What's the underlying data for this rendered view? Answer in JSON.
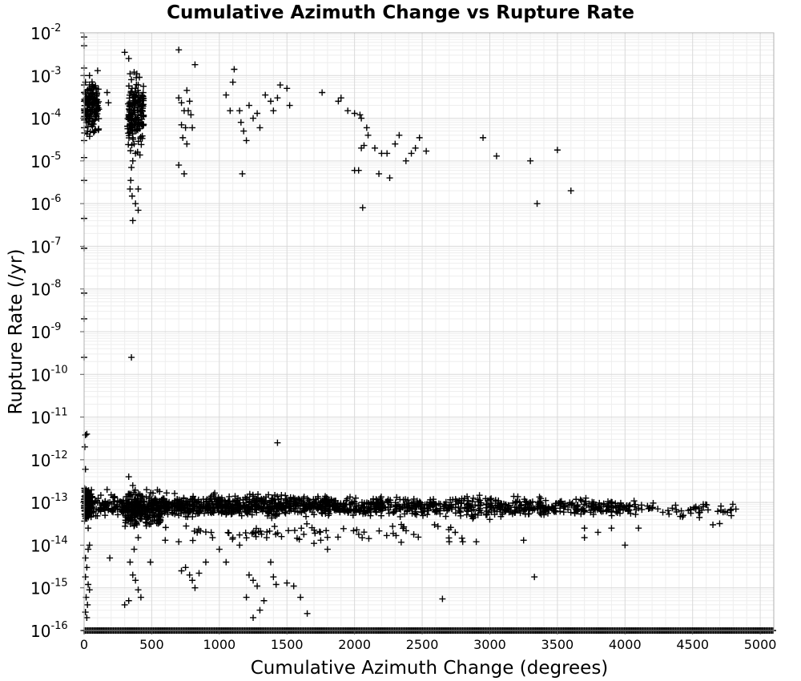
{
  "chart_data": {
    "type": "scatter",
    "title": "Cumulative Azimuth Change vs Rupture Rate",
    "xlabel": "Cumulative Azimuth Change (degrees)",
    "ylabel": "Rupture Rate (/yr)",
    "xlim": [
      0,
      5100
    ],
    "ylim": [
      1e-16,
      0.01
    ],
    "yscale": "log",
    "grid": true,
    "marker": "+",
    "marker_color": "#000000",
    "x_ticks": [
      {
        "value": 0,
        "label": "0"
      },
      {
        "value": 500,
        "label": "500"
      },
      {
        "value": 1000,
        "label": "1000"
      },
      {
        "value": 1500,
        "label": "1500"
      },
      {
        "value": 2000,
        "label": "2000"
      },
      {
        "value": 2500,
        "label": "2500"
      },
      {
        "value": 3000,
        "label": "3000"
      },
      {
        "value": 3500,
        "label": "3500"
      },
      {
        "value": 4000,
        "label": "4000"
      },
      {
        "value": 4500,
        "label": "4500"
      },
      {
        "value": 5000,
        "label": "5000"
      }
    ],
    "y_ticks": [
      {
        "value": 0.01,
        "base": "10",
        "exp": "-2"
      },
      {
        "value": 0.001,
        "base": "10",
        "exp": "-3"
      },
      {
        "value": 0.0001,
        "base": "10",
        "exp": "-4"
      },
      {
        "value": 1e-05,
        "base": "10",
        "exp": "-5"
      },
      {
        "value": 1e-06,
        "base": "10",
        "exp": "-6"
      },
      {
        "value": 1e-07,
        "base": "10",
        "exp": "-7"
      },
      {
        "value": 1e-08,
        "base": "10",
        "exp": "-8"
      },
      {
        "value": 1e-09,
        "base": "10",
        "exp": "-9"
      },
      {
        "value": 1e-10,
        "base": "10",
        "exp": "-10"
      },
      {
        "value": 1e-11,
        "base": "10",
        "exp": "-11"
      },
      {
        "value": 1e-12,
        "base": "10",
        "exp": "-12"
      },
      {
        "value": 1e-13,
        "base": "10",
        "exp": "-13"
      },
      {
        "value": 1e-14,
        "base": "10",
        "exp": "-14"
      },
      {
        "value": 1e-15,
        "base": "10",
        "exp": "-15"
      },
      {
        "value": 1e-16,
        "base": "10",
        "exp": "-16"
      }
    ],
    "points": [
      [
        0,
        0.008
      ],
      [
        0,
        0.005
      ],
      [
        0,
        0.0015
      ],
      [
        0,
        0.001
      ],
      [
        0,
        0.0006
      ],
      [
        0,
        0.0004
      ],
      [
        0,
        0.00025
      ],
      [
        0,
        0.00015
      ],
      [
        0,
        0.0001
      ],
      [
        0,
        6e-05
      ],
      [
        0,
        3e-05
      ],
      [
        0,
        1.2e-05
      ],
      [
        0,
        3.5e-06
      ],
      [
        0,
        4.5e-07
      ],
      [
        0,
        9e-08
      ],
      [
        0,
        8e-09
      ],
      [
        0,
        2e-09
      ],
      [
        0,
        2.5e-10
      ],
      [
        10,
        0.0007
      ],
      [
        15,
        0.0003
      ],
      [
        20,
        0.00012
      ],
      [
        25,
        5e-05
      ],
      [
        30,
        0.0002
      ],
      [
        40,
        0.001
      ],
      [
        60,
        0.0006
      ],
      [
        80,
        0.00011
      ],
      [
        100,
        0.0013
      ],
      [
        170,
        0.0004
      ],
      [
        180,
        0.00023
      ],
      [
        300,
        0.0035
      ],
      [
        330,
        0.0025
      ],
      [
        340,
        0.0011
      ],
      [
        350,
        0.0008
      ],
      [
        355,
        0.0005
      ],
      [
        360,
        0.0003
      ],
      [
        360,
        0.0002
      ],
      [
        365,
        0.00015
      ],
      [
        350,
        0.0001
      ],
      [
        345,
        7e-05
      ],
      [
        355,
        5e-05
      ],
      [
        360,
        3.5e-05
      ],
      [
        370,
        2.5e-05
      ],
      [
        380,
        1.5e-05
      ],
      [
        360,
        1e-05
      ],
      [
        350,
        7e-06
      ],
      [
        345,
        3.5e-06
      ],
      [
        340,
        2.2e-06
      ],
      [
        355,
        1.5e-06
      ],
      [
        380,
        1e-06
      ],
      [
        400,
        2.2e-06
      ],
      [
        400,
        7e-07
      ],
      [
        360,
        4e-07
      ],
      [
        390,
        0.0011
      ],
      [
        400,
        0.0006
      ],
      [
        410,
        0.00025
      ],
      [
        420,
        0.00015
      ],
      [
        430,
        7e-05
      ],
      [
        380,
        0.0005
      ],
      [
        370,
        0.0012
      ],
      [
        700,
        0.004
      ],
      [
        700,
        0.0003
      ],
      [
        720,
        0.00023
      ],
      [
        740,
        0.00015
      ],
      [
        760,
        0.00045
      ],
      [
        780,
        0.00025
      ],
      [
        720,
        7e-05
      ],
      [
        750,
        6e-05
      ],
      [
        730,
        3.5e-05
      ],
      [
        760,
        2.5e-05
      ],
      [
        800,
        6e-05
      ],
      [
        820,
        0.0018
      ],
      [
        700,
        8e-06
      ],
      [
        740,
        5e-06
      ],
      [
        770,
        0.00015
      ],
      [
        790,
        0.00012
      ],
      [
        1050,
        0.00035
      ],
      [
        1080,
        0.00015
      ],
      [
        1110,
        0.0014
      ],
      [
        1100,
        0.0007
      ],
      [
        1150,
        0.00015
      ],
      [
        1160,
        8e-05
      ],
      [
        1180,
        5e-05
      ],
      [
        1200,
        3e-05
      ],
      [
        1170,
        5e-06
      ],
      [
        1220,
        0.0002
      ],
      [
        1250,
        0.0001
      ],
      [
        1280,
        0.00013
      ],
      [
        1300,
        6e-05
      ],
      [
        1340,
        0.00035
      ],
      [
        1380,
        0.00025
      ],
      [
        1430,
        0.0003
      ],
      [
        1450,
        0.0006
      ],
      [
        1500,
        0.0005
      ],
      [
        1520,
        0.0002
      ],
      [
        1400,
        0.00015
      ],
      [
        1760,
        0.0004
      ],
      [
        1880,
        0.00025
      ],
      [
        1900,
        0.0003
      ],
      [
        1950,
        0.00015
      ],
      [
        2000,
        0.00013
      ],
      [
        2040,
        0.00012
      ],
      [
        2050,
        0.0001
      ],
      [
        2090,
        6e-05
      ],
      [
        2100,
        4e-05
      ],
      [
        2050,
        2e-05
      ],
      [
        2070,
        2.3e-05
      ],
      [
        2000,
        6e-06
      ],
      [
        2030,
        6e-06
      ],
      [
        2060,
        8e-07
      ],
      [
        2150,
        2e-05
      ],
      [
        2200,
        1.5e-05
      ],
      [
        2240,
        1.5e-05
      ],
      [
        2180,
        5e-06
      ],
      [
        2260,
        4e-06
      ],
      [
        2300,
        2.5e-05
      ],
      [
        2330,
        4e-05
      ],
      [
        2380,
        1e-05
      ],
      [
        2420,
        1.5e-05
      ],
      [
        2450,
        2e-05
      ],
      [
        2480,
        3.5e-05
      ],
      [
        2530,
        1.7e-05
      ],
      [
        2950,
        3.5e-05
      ],
      [
        3050,
        1.3e-05
      ],
      [
        3300,
        1e-05
      ],
      [
        3350,
        1e-06
      ],
      [
        3500,
        1.8e-05
      ],
      [
        3600,
        2e-06
      ],
      [
        10,
        3.8e-12
      ],
      [
        20,
        4e-12
      ],
      [
        5,
        2e-12
      ],
      [
        10,
        6e-13
      ],
      [
        15,
        2e-13
      ],
      [
        20,
        1e-13
      ],
      [
        25,
        5e-14
      ],
      [
        30,
        2.5e-14
      ],
      [
        40,
        1e-14
      ],
      [
        30,
        8e-15
      ],
      [
        10,
        5e-15
      ],
      [
        20,
        3e-15
      ],
      [
        10,
        1.8e-15
      ],
      [
        30,
        1.2e-15
      ],
      [
        40,
        9e-16
      ],
      [
        15,
        6e-16
      ],
      [
        25,
        4e-16
      ],
      [
        10,
        2.7e-16
      ],
      [
        20,
        2e-16
      ],
      [
        170,
        2e-13
      ],
      [
        200,
        1.5e-13
      ],
      [
        180,
        7e-14
      ],
      [
        190,
        5e-15
      ],
      [
        350,
        2.5e-10
      ],
      [
        360,
        2.5e-13
      ],
      [
        330,
        4e-13
      ],
      [
        340,
        1.5e-13
      ],
      [
        350,
        1e-13
      ],
      [
        370,
        8e-14
      ],
      [
        380,
        5e-14
      ],
      [
        390,
        3e-14
      ],
      [
        400,
        1.5e-14
      ],
      [
        370,
        8e-15
      ],
      [
        340,
        4e-15
      ],
      [
        360,
        2e-15
      ],
      [
        380,
        1.5e-15
      ],
      [
        400,
        9e-16
      ],
      [
        420,
        6e-16
      ],
      [
        330,
        5e-16
      ],
      [
        300,
        4e-16
      ],
      [
        490,
        4e-15
      ],
      [
        600,
        1.3e-14
      ],
      [
        700,
        5e-14
      ],
      [
        700,
        1.2e-14
      ],
      [
        720,
        2.5e-15
      ],
      [
        750,
        3e-15
      ],
      [
        780,
        2e-15
      ],
      [
        800,
        1.5e-15
      ],
      [
        820,
        1e-15
      ],
      [
        850,
        2.2e-15
      ],
      [
        900,
        4e-15
      ],
      [
        950,
        1.5e-14
      ],
      [
        1000,
        8e-15
      ],
      [
        1050,
        4e-15
      ],
      [
        1100,
        1.5e-14
      ],
      [
        1150,
        1e-14
      ],
      [
        1200,
        6e-16
      ],
      [
        1220,
        2e-15
      ],
      [
        1250,
        1.5e-15
      ],
      [
        1280,
        1.1e-15
      ],
      [
        1300,
        3e-16
      ],
      [
        1250,
        2e-16
      ],
      [
        1330,
        5e-16
      ],
      [
        1350,
        1.5e-14
      ],
      [
        1380,
        4e-15
      ],
      [
        1400,
        1.8e-15
      ],
      [
        1420,
        1.2e-15
      ],
      [
        1500,
        1.3e-15
      ],
      [
        1550,
        1.1e-15
      ],
      [
        1600,
        6e-16
      ],
      [
        1650,
        2.5e-16
      ],
      [
        1700,
        1.1e-14
      ],
      [
        1750,
        1.3e-14
      ],
      [
        1800,
        8e-15
      ],
      [
        1430,
        2.5e-12
      ],
      [
        2650,
        5.5e-16
      ],
      [
        2700,
        1.2e-14
      ],
      [
        2800,
        1.2e-14
      ],
      [
        2900,
        1.2e-14
      ],
      [
        3000,
        4e-14
      ],
      [
        3250,
        1.3e-14
      ],
      [
        3330,
        1.8e-15
      ],
      [
        3700,
        2.5e-14
      ],
      [
        3700,
        1.5e-14
      ],
      [
        3800,
        2e-14
      ],
      [
        3900,
        2.5e-14
      ],
      [
        4000,
        1e-14
      ],
      [
        4100,
        2.5e-14
      ],
      [
        4650,
        3e-14
      ],
      [
        4700,
        3.2e-14
      ],
      [
        4820,
        7e-14
      ],
      [
        4780,
        6.5e-14
      ]
    ],
    "point_clusters": [
      {
        "x_range": [
          0,
          110
        ],
        "y_range": [
          3e-05,
          0.0012
        ],
        "count": 140
      },
      {
        "x_range": [
          320,
          440
        ],
        "y_range": [
          1e-05,
          0.0013
        ],
        "count": 150
      },
      {
        "x_range": [
          0,
          60
        ],
        "y_range": [
          2.5e-14,
          3e-13
        ],
        "count": 120
      },
      {
        "x_range": [
          60,
          300
        ],
        "y_range": [
          4e-14,
          1.8e-13
        ],
        "count": 80
      },
      {
        "x_range": [
          300,
          580
        ],
        "y_range": [
          2e-14,
          2.5e-13
        ],
        "count": 260
      },
      {
        "x_range": [
          580,
          1100
        ],
        "y_range": [
          4e-14,
          1.8e-13
        ],
        "count": 280
      },
      {
        "x_range": [
          1100,
          1800
        ],
        "y_range": [
          4e-14,
          1.8e-13
        ],
        "count": 320
      },
      {
        "x_range": [
          1800,
          2600
        ],
        "y_range": [
          4e-14,
          1.6e-13
        ],
        "count": 280
      },
      {
        "x_range": [
          2600,
          3400
        ],
        "y_range": [
          4e-14,
          1.6e-13
        ],
        "count": 220
      },
      {
        "x_range": [
          3400,
          4100
        ],
        "y_range": [
          4e-14,
          1.5e-13
        ],
        "count": 150
      },
      {
        "x_range": [
          4100,
          4800
        ],
        "y_range": [
          4e-14,
          1.2e-13
        ],
        "count": 50
      },
      {
        "x_range": [
          600,
          2800
        ],
        "y_range": [
          1e-14,
          4e-14
        ],
        "count": 70
      }
    ],
    "floor_points": {
      "y": 1e-16,
      "x_range": [
        0,
        5100
      ]
    }
  }
}
